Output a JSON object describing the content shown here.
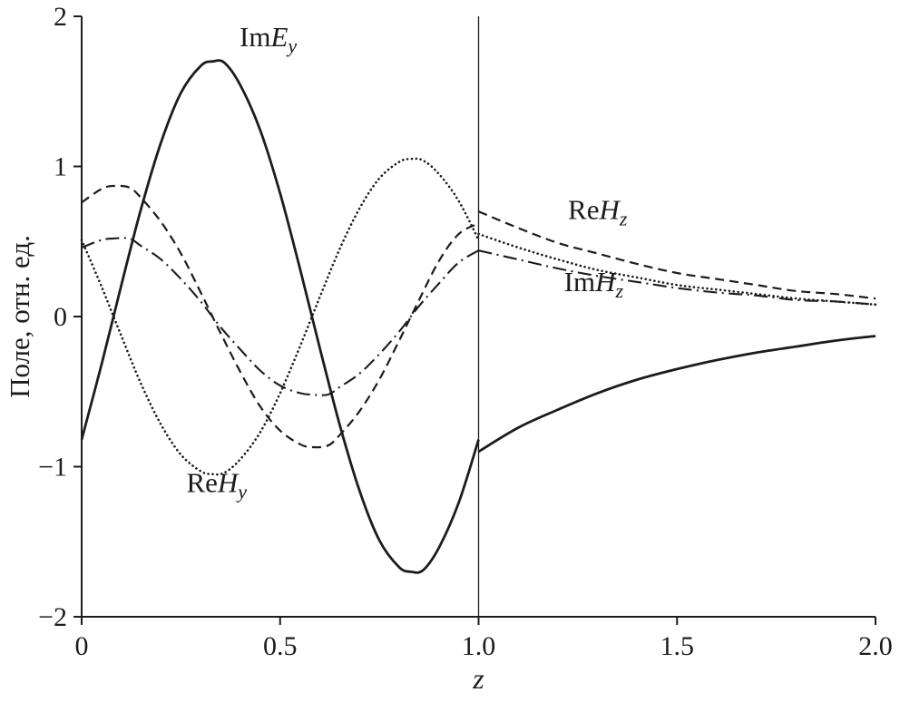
{
  "page": {
    "background": "#ffffff",
    "ink": "#1c1c1c"
  },
  "chart_data": {
    "type": "line",
    "title": "",
    "xlabel": "z",
    "ylabel": "Поле, отн. ед.",
    "xlim": [
      0,
      2
    ],
    "ylim": [
      -2,
      2
    ],
    "grid": false,
    "legend_position": "inline-annotations",
    "boundary_line_x": 1.0,
    "xticks": {
      "values": [
        0,
        0.5,
        1.0,
        1.5,
        2.0
      ],
      "labels": [
        "0",
        "0.5",
        "1.0",
        "1.5",
        "2.0"
      ]
    },
    "yticks": {
      "values": [
        -2,
        -1,
        0,
        1,
        2
      ],
      "labels": [
        "−2",
        "−1",
        "0",
        "1",
        "2"
      ]
    },
    "series": [
      {
        "name": "ImEy",
        "dash": "solid",
        "label": {
          "roman": "Im",
          "italic": "E",
          "sub": "y",
          "x": 0.47,
          "y": 1.8
        },
        "segments": [
          [
            [
              0,
              -0.82
            ],
            [
              0.05,
              -0.32
            ],
            [
              0.1,
              0.21
            ],
            [
              0.15,
              0.72
            ],
            [
              0.2,
              1.16
            ],
            [
              0.25,
              1.49
            ],
            [
              0.3,
              1.67
            ],
            [
              0.33,
              1.7
            ],
            [
              0.36,
              1.69
            ],
            [
              0.4,
              1.54
            ],
            [
              0.45,
              1.24
            ],
            [
              0.5,
              0.82
            ],
            [
              0.55,
              0.32
            ],
            [
              0.6,
              -0.21
            ],
            [
              0.65,
              -0.72
            ],
            [
              0.7,
              -1.16
            ],
            [
              0.75,
              -1.49
            ],
            [
              0.8,
              -1.67
            ],
            [
              0.83,
              -1.7
            ],
            [
              0.86,
              -1.69
            ],
            [
              0.9,
              -1.54
            ],
            [
              0.95,
              -1.24
            ],
            [
              1,
              -0.82
            ]
          ],
          [
            [
              1,
              -0.9
            ],
            [
              1.1,
              -0.74
            ],
            [
              1.2,
              -0.62
            ],
            [
              1.3,
              -0.51
            ],
            [
              1.4,
              -0.42
            ],
            [
              1.5,
              -0.35
            ],
            [
              1.6,
              -0.29
            ],
            [
              1.7,
              -0.24
            ],
            [
              1.8,
              -0.2
            ],
            [
              1.9,
              -0.16
            ],
            [
              2,
              -0.13
            ]
          ]
        ]
      },
      {
        "name": "ReHy",
        "dash": "dotted",
        "label": {
          "roman": "Re",
          "italic": "H",
          "sub": "y",
          "x": 0.34,
          "y": -1.17
        },
        "segments": [
          [
            [
              0,
              0.51
            ],
            [
              0.05,
              0.2
            ],
            [
              0.1,
              -0.13
            ],
            [
              0.15,
              -0.45
            ],
            [
              0.2,
              -0.72
            ],
            [
              0.25,
              -0.92
            ],
            [
              0.3,
              -1.03
            ],
            [
              0.33,
              -1.05
            ],
            [
              0.36,
              -1.04
            ],
            [
              0.4,
              -0.95
            ],
            [
              0.45,
              -0.77
            ],
            [
              0.5,
              -0.51
            ],
            [
              0.55,
              -0.2
            ],
            [
              0.6,
              0.13
            ],
            [
              0.65,
              0.45
            ],
            [
              0.7,
              0.72
            ],
            [
              0.75,
              0.92
            ],
            [
              0.8,
              1.03
            ],
            [
              0.83,
              1.05
            ],
            [
              0.86,
              1.04
            ],
            [
              0.9,
              0.95
            ],
            [
              0.95,
              0.77
            ],
            [
              1,
              0.51
            ]
          ],
          [
            [
              1,
              0.55
            ],
            [
              1.1,
              0.46
            ],
            [
              1.2,
              0.38
            ],
            [
              1.3,
              0.31
            ],
            [
              1.4,
              0.26
            ],
            [
              1.5,
              0.21
            ],
            [
              1.6,
              0.18
            ],
            [
              1.7,
              0.15
            ],
            [
              1.8,
              0.12
            ],
            [
              1.9,
              0.1
            ],
            [
              2,
              0.08
            ]
          ]
        ]
      },
      {
        "name": "ReHz",
        "dash": "dashed",
        "label": {
          "roman": "Re",
          "italic": "H",
          "sub": "z",
          "x": 1.3,
          "y": 0.65
        },
        "segments": [
          [
            [
              0,
              0.76
            ],
            [
              0.05,
              0.85
            ],
            [
              0.08,
              0.87
            ],
            [
              0.12,
              0.86
            ],
            [
              0.15,
              0.79
            ],
            [
              0.2,
              0.63
            ],
            [
              0.25,
              0.42
            ],
            [
              0.3,
              0.16
            ],
            [
              0.35,
              -0.11
            ],
            [
              0.4,
              -0.37
            ],
            [
              0.45,
              -0.6
            ],
            [
              0.5,
              -0.76
            ],
            [
              0.55,
              -0.85
            ],
            [
              0.58,
              -0.87
            ],
            [
              0.62,
              -0.86
            ],
            [
              0.65,
              -0.79
            ],
            [
              0.7,
              -0.63
            ],
            [
              0.75,
              -0.42
            ],
            [
              0.8,
              -0.16
            ],
            [
              0.85,
              0.11
            ],
            [
              0.9,
              0.37
            ],
            [
              0.95,
              0.55
            ],
            [
              1,
              0.62
            ]
          ],
          [
            [
              1,
              0.7
            ],
            [
              1.1,
              0.59
            ],
            [
              1.2,
              0.49
            ],
            [
              1.3,
              0.42
            ],
            [
              1.4,
              0.35
            ],
            [
              1.5,
              0.29
            ],
            [
              1.6,
              0.25
            ],
            [
              1.7,
              0.21
            ],
            [
              1.8,
              0.17
            ],
            [
              1.9,
              0.15
            ],
            [
              2,
              0.12
            ]
          ]
        ]
      },
      {
        "name": "ImHz",
        "dash": "dashdot",
        "label": {
          "roman": "Im",
          "italic": "H",
          "sub": "z",
          "x": 1.29,
          "y": 0.17
        },
        "segments": [
          [
            [
              0,
              0.46
            ],
            [
              0.05,
              0.51
            ],
            [
              0.08,
              0.52
            ],
            [
              0.12,
              0.52
            ],
            [
              0.15,
              0.47
            ],
            [
              0.2,
              0.38
            ],
            [
              0.25,
              0.25
            ],
            [
              0.3,
              0.1
            ],
            [
              0.35,
              -0.07
            ],
            [
              0.4,
              -0.22
            ],
            [
              0.45,
              -0.36
            ],
            [
              0.5,
              -0.46
            ],
            [
              0.55,
              -0.51
            ],
            [
              0.58,
              -0.52
            ],
            [
              0.62,
              -0.52
            ],
            [
              0.65,
              -0.47
            ],
            [
              0.7,
              -0.38
            ],
            [
              0.75,
              -0.25
            ],
            [
              0.8,
              -0.1
            ],
            [
              0.85,
              0.07
            ],
            [
              0.9,
              0.22
            ],
            [
              0.95,
              0.36
            ],
            [
              1,
              0.44
            ]
          ],
          [
            [
              1,
              0.44
            ],
            [
              1.1,
              0.38
            ],
            [
              1.2,
              0.32
            ],
            [
              1.3,
              0.27
            ],
            [
              1.4,
              0.23
            ],
            [
              1.5,
              0.19
            ],
            [
              1.6,
              0.16
            ],
            [
              1.7,
              0.14
            ],
            [
              1.8,
              0.11
            ],
            [
              1.9,
              0.1
            ],
            [
              2,
              0.08
            ]
          ]
        ]
      }
    ]
  }
}
